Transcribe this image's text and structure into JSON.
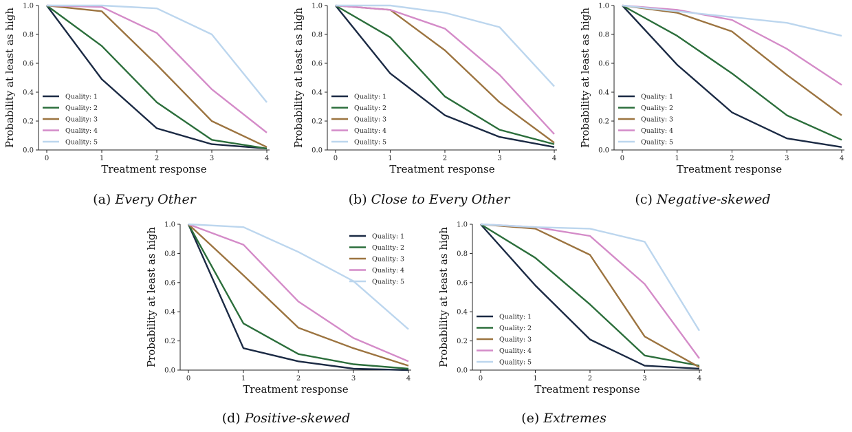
{
  "colors": {
    "Quality: 1": "#1b2a44",
    "Quality: 2": "#2b6e3b",
    "Quality: 3": "#9c7440",
    "Quality: 4": "#d48bc8",
    "Quality: 5": "#bcd6ee"
  },
  "chart_data": [
    {
      "type": "line",
      "caption_label": "(a)",
      "caption": "Every Other",
      "xlabel": "Treatment response",
      "ylabel": "Probability at least as high",
      "x": [
        0,
        1,
        2,
        3,
        4
      ],
      "xticks": [
        "0",
        "1",
        "2",
        "3",
        "4"
      ],
      "yticks": [
        "0.0",
        "0.2",
        "0.4",
        "0.6",
        "0.8",
        "1.0"
      ],
      "xlim": [
        -0.15,
        4.05
      ],
      "ylim": [
        0,
        1
      ],
      "legend": "lower-left",
      "series": [
        {
          "name": "Quality: 1",
          "values": [
            1.0,
            0.49,
            0.15,
            0.04,
            0.01
          ]
        },
        {
          "name": "Quality: 2",
          "values": [
            1.0,
            0.72,
            0.33,
            0.07,
            0.01
          ]
        },
        {
          "name": "Quality: 3",
          "values": [
            1.0,
            0.96,
            0.59,
            0.2,
            0.02
          ]
        },
        {
          "name": "Quality: 4",
          "values": [
            1.0,
            0.99,
            0.81,
            0.42,
            0.12
          ]
        },
        {
          "name": "Quality: 5",
          "values": [
            1.0,
            1.0,
            0.98,
            0.8,
            0.33
          ]
        }
      ]
    },
    {
      "type": "line",
      "caption_label": "(b)",
      "caption": "Close to Every Other",
      "xlabel": "Treatment response",
      "ylabel": "Probability at least as high",
      "x": [
        0,
        1,
        2,
        3,
        4
      ],
      "xticks": [
        "0",
        "1",
        "2",
        "3",
        "4"
      ],
      "yticks": [
        "0.0",
        "0.2",
        "0.4",
        "0.6",
        "0.8",
        "1.0"
      ],
      "xlim": [
        -0.15,
        4.05
      ],
      "ylim": [
        0,
        1
      ],
      "legend": "lower-left",
      "series": [
        {
          "name": "Quality: 1",
          "values": [
            1.0,
            0.53,
            0.24,
            0.09,
            0.02
          ]
        },
        {
          "name": "Quality: 2",
          "values": [
            1.0,
            0.78,
            0.37,
            0.14,
            0.04
          ]
        },
        {
          "name": "Quality: 3",
          "values": [
            1.0,
            0.97,
            0.69,
            0.33,
            0.05
          ]
        },
        {
          "name": "Quality: 4",
          "values": [
            1.0,
            0.97,
            0.84,
            0.52,
            0.11
          ]
        },
        {
          "name": "Quality: 5",
          "values": [
            1.0,
            1.0,
            0.95,
            0.85,
            0.44
          ]
        }
      ]
    },
    {
      "type": "line",
      "caption_label": "(c)",
      "caption": "Negative-skewed",
      "xlabel": "Treatment response",
      "ylabel": "Probability at least as high",
      "x": [
        0,
        1,
        2,
        3,
        4
      ],
      "xticks": [
        "0",
        "1",
        "2",
        "3",
        "4"
      ],
      "yticks": [
        "0.0",
        "0.2",
        "0.4",
        "0.6",
        "0.8",
        "1.0"
      ],
      "xlim": [
        -0.15,
        4.05
      ],
      "ylim": [
        0,
        1
      ],
      "legend": "lower-left",
      "series": [
        {
          "name": "Quality: 1",
          "values": [
            1.0,
            0.59,
            0.26,
            0.08,
            0.02
          ]
        },
        {
          "name": "Quality: 2",
          "values": [
            1.0,
            0.79,
            0.53,
            0.24,
            0.07
          ]
        },
        {
          "name": "Quality: 3",
          "values": [
            1.0,
            0.95,
            0.82,
            0.52,
            0.24
          ]
        },
        {
          "name": "Quality: 4",
          "values": [
            1.0,
            0.97,
            0.9,
            0.7,
            0.45
          ]
        },
        {
          "name": "Quality: 5",
          "values": [
            1.0,
            0.96,
            0.92,
            0.88,
            0.79
          ]
        }
      ]
    },
    {
      "type": "line",
      "caption_label": "(d)",
      "caption": "Positive-skewed",
      "xlabel": "Treatment response",
      "ylabel": "Probability at least as high",
      "x": [
        0,
        1,
        2,
        3,
        4
      ],
      "xticks": [
        "0",
        "1",
        "2",
        "3",
        "4"
      ],
      "yticks": [
        "0.0",
        "0.2",
        "0.4",
        "0.6",
        "0.8",
        "1.0"
      ],
      "xlim": [
        -0.15,
        4.05
      ],
      "ylim": [
        0,
        1
      ],
      "legend": "upper-right",
      "series": [
        {
          "name": "Quality: 1",
          "values": [
            1.0,
            0.15,
            0.06,
            0.01,
            0.0
          ]
        },
        {
          "name": "Quality: 2",
          "values": [
            1.0,
            0.32,
            0.11,
            0.04,
            0.01
          ]
        },
        {
          "name": "Quality: 3",
          "values": [
            1.0,
            0.65,
            0.29,
            0.15,
            0.03
          ]
        },
        {
          "name": "Quality: 4",
          "values": [
            1.0,
            0.86,
            0.47,
            0.22,
            0.06
          ]
        },
        {
          "name": "Quality: 5",
          "values": [
            1.0,
            0.98,
            0.81,
            0.61,
            0.28
          ]
        }
      ]
    },
    {
      "type": "line",
      "caption_label": "(e)",
      "caption": "Extremes",
      "xlabel": "Treatment response",
      "ylabel": "Probability at least as high",
      "x": [
        0,
        1,
        2,
        3,
        4
      ],
      "xticks": [
        "0",
        "1",
        "2",
        "3",
        "4"
      ],
      "yticks": [
        "0.0",
        "0.2",
        "0.4",
        "0.6",
        "0.8",
        "1.0"
      ],
      "xlim": [
        -0.15,
        4.05
      ],
      "ylim": [
        0,
        1
      ],
      "legend": "lower-left",
      "series": [
        {
          "name": "Quality: 1",
          "values": [
            1.0,
            0.58,
            0.21,
            0.03,
            0.01
          ]
        },
        {
          "name": "Quality: 2",
          "values": [
            1.0,
            0.77,
            0.45,
            0.1,
            0.03
          ]
        },
        {
          "name": "Quality: 3",
          "values": [
            1.0,
            0.97,
            0.79,
            0.23,
            0.02
          ]
        },
        {
          "name": "Quality: 4",
          "values": [
            1.0,
            0.98,
            0.92,
            0.59,
            0.08
          ]
        },
        {
          "name": "Quality: 5",
          "values": [
            1.0,
            0.98,
            0.97,
            0.88,
            0.27
          ]
        }
      ]
    }
  ]
}
